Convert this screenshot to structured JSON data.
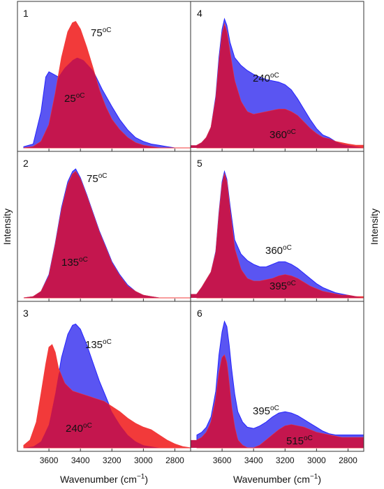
{
  "colors": {
    "blue_fill": "#5a55f2",
    "blue_edge": "#2323ff",
    "red_fill": "#f23a3a",
    "overlap_fill": "#c4164e",
    "frame": "#333333"
  },
  "chart_data": {
    "type": "area",
    "grid": false,
    "x_axis": {
      "label": "Wavenumber (cm",
      "label_superscript": "−1",
      "label_suffix": ")",
      "range": [
        3800,
        2700
      ],
      "reversed": true,
      "ticks": [
        3600,
        3400,
        3200,
        3000,
        2800
      ],
      "tick_labels": [
        "3600",
        "3400",
        "3200",
        "3000",
        "2800"
      ]
    },
    "y_axis": {
      "left_label": "Intensity",
      "right_label": "Intensity",
      "ticks_shown": false
    },
    "panels": [
      {
        "panel": "1",
        "series": [
          {
            "name": "25",
            "unit": "oC",
            "color": "#5a55f2",
            "x": [
              3760,
              3700,
              3650,
              3620,
              3600,
              3570,
              3540,
              3500,
              3450,
              3420,
              3380,
              3320,
              3260,
              3200,
              3150,
              3100,
              3050,
              3000,
              2950,
              2900,
              2850,
              2800,
              2700
            ],
            "y": [
              0.01,
              0.03,
              0.28,
              0.55,
              0.59,
              0.57,
              0.55,
              0.62,
              0.68,
              0.7,
              0.68,
              0.6,
              0.45,
              0.32,
              0.22,
              0.14,
              0.08,
              0.05,
              0.03,
              0.02,
              0.01,
              0.0,
              0.0
            ]
          },
          {
            "name": "75",
            "unit": "oC",
            "color": "#f23a3a",
            "x": [
              3760,
              3700,
              3650,
              3600,
              3560,
              3520,
              3480,
              3450,
              3430,
              3400,
              3360,
              3320,
              3280,
              3240,
              3200,
              3150,
              3100,
              3050,
              3000,
              2950,
              2900,
              2800,
              2700
            ],
            "y": [
              0.0,
              0.01,
              0.05,
              0.18,
              0.42,
              0.7,
              0.9,
              0.97,
              0.98,
              0.92,
              0.78,
              0.62,
              0.45,
              0.32,
              0.22,
              0.14,
              0.08,
              0.04,
              0.02,
              0.01,
              0.0,
              0.0,
              0.0
            ]
          }
        ]
      },
      {
        "panel": "2",
        "series": [
          {
            "name": "75",
            "unit": "oC",
            "color": "#5a55f2",
            "x": [
              3760,
              3700,
              3650,
              3600,
              3560,
              3520,
              3480,
              3450,
              3430,
              3400,
              3360,
              3320,
              3280,
              3240,
              3200,
              3150,
              3100,
              3050,
              3000,
              2950,
              2900,
              2800,
              2700
            ],
            "y": [
              0.0,
              0.01,
              0.05,
              0.18,
              0.42,
              0.7,
              0.9,
              0.98,
              1.0,
              0.93,
              0.8,
              0.66,
              0.52,
              0.4,
              0.28,
              0.18,
              0.1,
              0.05,
              0.02,
              0.01,
              0.0,
              0.0,
              0.0
            ]
          },
          {
            "name": "135",
            "unit": "oC",
            "color": "#f23a3a",
            "x": [
              3760,
              3700,
              3650,
              3600,
              3560,
              3520,
              3480,
              3450,
              3430,
              3400,
              3360,
              3320,
              3280,
              3240,
              3200,
              3150,
              3100,
              3050,
              3000,
              2950,
              2900,
              2800,
              2700
            ],
            "y": [
              0.0,
              0.01,
              0.05,
              0.17,
              0.41,
              0.68,
              0.88,
              0.96,
              0.98,
              0.92,
              0.79,
              0.65,
              0.51,
              0.39,
              0.27,
              0.17,
              0.09,
              0.05,
              0.02,
              0.01,
              0.0,
              0.0,
              0.0
            ]
          }
        ]
      },
      {
        "panel": "3",
        "series": [
          {
            "name": "135",
            "unit": "oC",
            "color": "#5a55f2",
            "x": [
              3760,
              3700,
              3650,
              3600,
              3560,
              3520,
              3480,
              3450,
              3430,
              3400,
              3360,
              3320,
              3280,
              3240,
              3200,
              3150,
              3100,
              3050,
              3000,
              2950,
              2900,
              2800,
              2700
            ],
            "y": [
              0.0,
              0.01,
              0.05,
              0.18,
              0.42,
              0.7,
              0.88,
              0.95,
              0.96,
              0.92,
              0.8,
              0.66,
              0.52,
              0.4,
              0.28,
              0.18,
              0.1,
              0.05,
              0.02,
              0.01,
              0.0,
              0.0,
              0.0
            ]
          },
          {
            "name": "240",
            "unit": "oC",
            "color": "#f23a3a",
            "x": [
              3760,
              3720,
              3680,
              3650,
              3620,
              3600,
              3580,
              3560,
              3540,
              3500,
              3450,
              3400,
              3350,
              3300,
              3250,
              3200,
              3150,
              3100,
              3050,
              3000,
              2950,
              2900,
              2850,
              2800,
              2750,
              2700
            ],
            "y": [
              0.02,
              0.06,
              0.2,
              0.42,
              0.65,
              0.78,
              0.8,
              0.74,
              0.62,
              0.5,
              0.44,
              0.42,
              0.4,
              0.38,
              0.36,
              0.32,
              0.28,
              0.23,
              0.19,
              0.16,
              0.14,
              0.1,
              0.06,
              0.03,
              0.01,
              0.0
            ]
          }
        ]
      },
      {
        "panel": "4",
        "series": [
          {
            "name": "240",
            "unit": "oC",
            "color": "#5a55f2",
            "x": [
              3760,
              3730,
              3700,
              3670,
              3640,
              3620,
              3600,
              3585,
              3570,
              3550,
              3520,
              3480,
              3440,
              3400,
              3360,
              3320,
              3280,
              3240,
              3200,
              3160,
              3120,
              3080,
              3040,
              3000,
              2960,
              2920,
              2880,
              2840,
              2800,
              2750,
              2700
            ],
            "y": [
              0.02,
              0.04,
              0.08,
              0.16,
              0.4,
              0.7,
              0.92,
              1.0,
              0.95,
              0.82,
              0.7,
              0.64,
              0.6,
              0.57,
              0.55,
              0.53,
              0.52,
              0.51,
              0.49,
              0.45,
              0.38,
              0.3,
              0.22,
              0.15,
              0.1,
              0.08,
              0.05,
              0.03,
              0.02,
              0.01,
              0.0
            ]
          },
          {
            "name": "360",
            "unit": "oC",
            "color": "#f23a3a",
            "x": [
              3760,
              3730,
              3700,
              3670,
              3640,
              3620,
              3600,
              3585,
              3570,
              3550,
              3520,
              3480,
              3440,
              3400,
              3360,
              3320,
              3280,
              3240,
              3200,
              3160,
              3120,
              3080,
              3040,
              3000,
              2960,
              2920,
              2880,
              2840,
              2800,
              2750,
              2700
            ],
            "y": [
              0.02,
              0.04,
              0.08,
              0.16,
              0.38,
              0.66,
              0.88,
              0.96,
              0.9,
              0.74,
              0.52,
              0.36,
              0.28,
              0.26,
              0.27,
              0.28,
              0.29,
              0.3,
              0.3,
              0.28,
              0.25,
              0.2,
              0.15,
              0.11,
              0.08,
              0.07,
              0.05,
              0.04,
              0.03,
              0.02,
              0.02
            ]
          }
        ]
      },
      {
        "panel": "5",
        "series": [
          {
            "name": "360",
            "unit": "oC",
            "color": "#5a55f2",
            "x": [
              3760,
              3730,
              3700,
              3670,
              3640,
              3620,
              3600,
              3585,
              3570,
              3550,
              3520,
              3480,
              3440,
              3400,
              3360,
              3320,
              3280,
              3240,
              3200,
              3160,
              3120,
              3080,
              3040,
              3000,
              2960,
              2920,
              2880,
              2840,
              2800,
              2750,
              2700
            ],
            "y": [
              0.03,
              0.08,
              0.14,
              0.2,
              0.36,
              0.66,
              0.9,
              0.98,
              0.92,
              0.72,
              0.45,
              0.34,
              0.29,
              0.26,
              0.24,
              0.24,
              0.26,
              0.28,
              0.28,
              0.26,
              0.23,
              0.19,
              0.15,
              0.11,
              0.08,
              0.06,
              0.04,
              0.03,
              0.02,
              0.01,
              0.0
            ]
          },
          {
            "name": "395",
            "unit": "oC",
            "color": "#f23a3a",
            "x": [
              3760,
              3730,
              3700,
              3670,
              3640,
              3620,
              3600,
              3585,
              3570,
              3550,
              3520,
              3480,
              3440,
              3400,
              3360,
              3320,
              3280,
              3240,
              3200,
              3160,
              3120,
              3080,
              3040,
              3000,
              2960,
              2920,
              2880,
              2840,
              2800,
              2750,
              2700
            ],
            "y": [
              0.03,
              0.08,
              0.14,
              0.2,
              0.35,
              0.64,
              0.88,
              0.96,
              0.9,
              0.68,
              0.38,
              0.22,
              0.15,
              0.13,
              0.13,
              0.14,
              0.15,
              0.17,
              0.18,
              0.17,
              0.15,
              0.12,
              0.09,
              0.07,
              0.05,
              0.04,
              0.03,
              0.02,
              0.02,
              0.01,
              0.01
            ]
          }
        ]
      },
      {
        "panel": "6",
        "series": [
          {
            "name": "395",
            "unit": "oC",
            "color": "#5a55f2",
            "x": [
              3760,
              3730,
              3700,
              3670,
              3640,
              3620,
              3600,
              3585,
              3570,
              3555,
              3540,
              3520,
              3500,
              3470,
              3440,
              3400,
              3360,
              3320,
              3280,
              3240,
              3200,
              3160,
              3120,
              3080,
              3040,
              3000,
              2960,
              2920,
              2880,
              2840,
              2800,
              2750,
              2700
            ],
            "y": [
              0.1,
              0.12,
              0.16,
              0.24,
              0.44,
              0.72,
              0.9,
              0.98,
              0.94,
              0.8,
              0.62,
              0.42,
              0.28,
              0.2,
              0.16,
              0.15,
              0.17,
              0.2,
              0.24,
              0.27,
              0.28,
              0.27,
              0.25,
              0.22,
              0.19,
              0.16,
              0.13,
              0.11,
              0.1,
              0.1,
              0.1,
              0.1,
              0.1
            ]
          },
          {
            "name": "515",
            "unit": "oC",
            "color": "#f23a3a",
            "x": [
              3760,
              3730,
              3700,
              3670,
              3640,
              3620,
              3600,
              3585,
              3570,
              3555,
              3540,
              3520,
              3500,
              3470,
              3440,
              3400,
              3360,
              3320,
              3280,
              3240,
              3200,
              3160,
              3120,
              3080,
              3040,
              3000,
              2960,
              2920,
              2880,
              2840,
              2800,
              2750,
              2700
            ],
            "y": [
              0.06,
              0.08,
              0.12,
              0.2,
              0.38,
              0.58,
              0.7,
              0.72,
              0.66,
              0.5,
              0.32,
              0.16,
              0.06,
              0.02,
              0.0,
              0.0,
              0.02,
              0.06,
              0.1,
              0.14,
              0.17,
              0.18,
              0.17,
              0.16,
              0.14,
              0.12,
              0.11,
              0.1,
              0.09,
              0.08,
              0.08,
              0.08,
              0.08
            ]
          }
        ]
      }
    ]
  }
}
